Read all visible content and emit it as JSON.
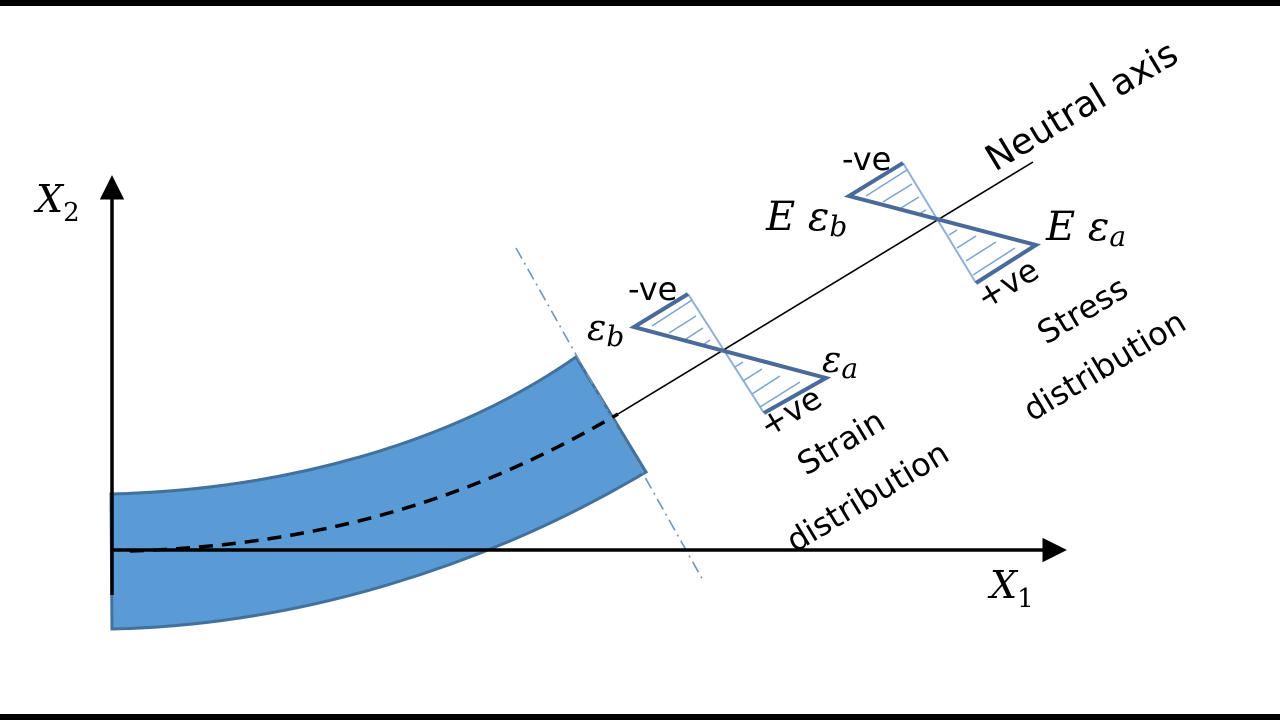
{
  "axes": {
    "x_label": "X",
    "x_sub": "1",
    "y_label": "X",
    "y_sub": "2"
  },
  "neutral_axis_label": "Neutral axis",
  "strain": {
    "top_symbol": "ε",
    "top_sub": "b",
    "top_sign": "-ve",
    "bottom_symbol": "ε",
    "bottom_sub": "a",
    "bottom_sign": "+ve",
    "caption_line1": "Strain",
    "caption_line2": "distribution"
  },
  "stress": {
    "top_prefix": "E ε",
    "top_sub": "b",
    "top_sign": "-ve",
    "bottom_prefix": "E ε",
    "bottom_sub": "a",
    "bottom_sign": "+ve",
    "caption_line1": "Stress",
    "caption_line2": "distribution"
  },
  "colors": {
    "beam_fill": "#5b9bd5",
    "beam_stroke": "#41719c",
    "diagram_stroke": "#4a6a99",
    "hatch": "#7ba4cf",
    "section_line": "#6f94bd"
  }
}
